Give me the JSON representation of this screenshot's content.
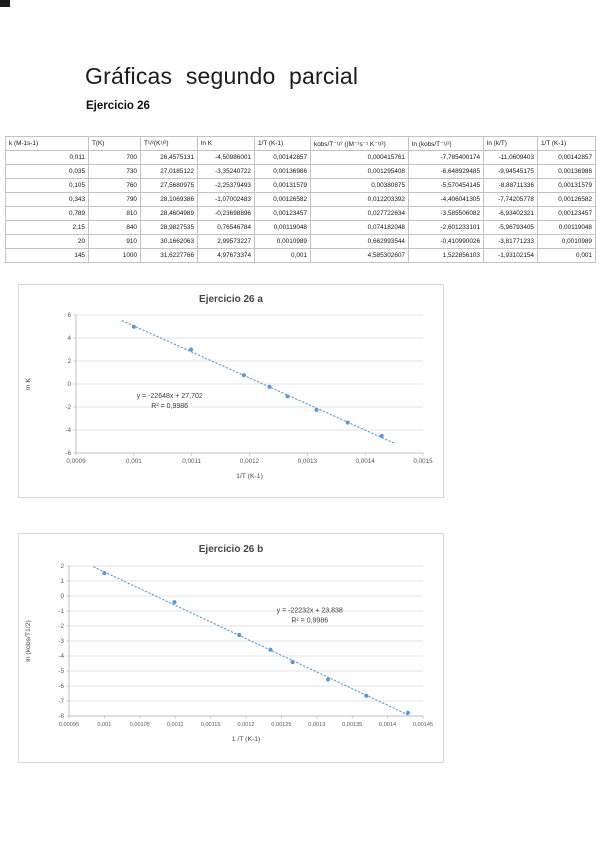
{
  "page": {
    "title": "Gráficas segundo  parcial",
    "subtitle": "Ejercicio 26"
  },
  "table": {
    "headers": [
      "k (M-1s-1)",
      "T(K)",
      "T¹/²(K¹/²)",
      "ln K",
      "1/T (K-1)",
      "kobs/T⁻¹/² ((M⁻¹s⁻¹ K⁻¹/²)",
      "ln (kobs/T⁻¹/²)",
      "ln (k/T)",
      "1/T (K-1)"
    ],
    "rows": [
      [
        "0,011",
        "700",
        "26,4575131",
        "-4,50986001",
        "0,00142857",
        "0,000415761",
        "-7,785400174",
        "-11,0609403",
        "0,00142857"
      ],
      [
        "0,035",
        "730",
        "27,0185122",
        "-3,35240722",
        "0,00136986",
        "0,001295408",
        "-6,648929485",
        "-9,94545175",
        "0,00136986"
      ],
      [
        "0,105",
        "760",
        "27,5680975",
        "-2,25379493",
        "0,00131579",
        "0,00380875",
        "-5,570454145",
        "-8,88711336",
        "0,00131579"
      ],
      [
        "0,343",
        "790",
        "28,1069386",
        "-1,07002483",
        "0,00126582",
        "0,012203392",
        "-4,406041305",
        "-7,74205778",
        "0,00126582"
      ],
      [
        "0,789",
        "810",
        "28,4604989",
        "-0,23698896",
        "0,00123457",
        "0,027722634",
        "-3,585506082",
        "-6,93402321",
        "0,00123457"
      ],
      [
        "2,15",
        "840",
        "28,9827535",
        "0,76546784",
        "0,00119048",
        "0,074182048",
        "-2,601233101",
        "-5,96793405",
        "0,00119048"
      ],
      [
        "20",
        "910",
        "30,1662063",
        "2,99573227",
        "0,0010989",
        "0,662993544",
        "-0,410990026",
        "-3,81771233",
        "0,0010989"
      ],
      [
        "145",
        "1000",
        "31,6227766",
        "4,97673374",
        "0,001",
        "4,585302607",
        "1,522856103",
        "-1,93102154",
        "0,001"
      ]
    ]
  },
  "chart_data": [
    {
      "type": "scatter",
      "title": "Ejercicio 26 a",
      "xlabel": "1/T (K-1)",
      "ylabel": "ln K",
      "xlim": [
        0.0009,
        0.0015
      ],
      "ylim": [
        -6,
        6
      ],
      "x_ticks": [
        0.0009,
        0.001,
        0.0011,
        0.0012,
        0.0013,
        0.0014,
        0.0015
      ],
      "x_tick_labels": [
        "0,0009",
        "0,001",
        "0,0011",
        "0,0012",
        "0,0013",
        "0,0014",
        "0,0015"
      ],
      "y_ticks": [
        -6,
        -4,
        -2,
        0,
        2,
        4,
        6
      ],
      "y_tick_labels": [
        "-6",
        "-4",
        "-2",
        "0",
        "2",
        "4",
        "6"
      ],
      "grid": "horizontal",
      "legend": "none",
      "points": [
        [
          0.001,
          4.97673374
        ],
        [
          0.0010989,
          2.99573227
        ],
        [
          0.00119048,
          0.76546784
        ],
        [
          0.00123457,
          -0.23698896
        ],
        [
          0.00126582,
          -1.07002483
        ],
        [
          0.00131579,
          -2.25379493
        ],
        [
          0.00136986,
          -3.35240722
        ],
        [
          0.00142857,
          -4.50986001
        ]
      ],
      "trendline": {
        "slope": -22648,
        "intercept": 27.702,
        "x_start": 0.00098,
        "x_end": 0.001452,
        "style": "dotted"
      },
      "annotation": {
        "lines": [
          "y = -22648x + 27,702",
          "R² = 0,9986"
        ],
        "pos": [
          0.27,
          0.6
        ]
      },
      "marker_color": "#5b9bd5",
      "trend_color": "#5b9bd5",
      "grid_color": "#dadada",
      "axis_color": "#bfbfbf",
      "text_color": "#595959"
    },
    {
      "type": "scatter",
      "title": "Ejercicio 26 b",
      "xlabel": "1 /T (K-1)",
      "ylabel": "ln (kobs/T1/2)",
      "xlim": [
        0.00095,
        0.00145
      ],
      "ylim": [
        -8,
        2
      ],
      "x_ticks": [
        0.00095,
        0.001,
        0.00105,
        0.0011,
        0.00115,
        0.0012,
        0.00125,
        0.0013,
        0.00135,
        0.0014,
        0.00145
      ],
      "x_tick_labels": [
        "0,00095",
        "0,001",
        "0,00105",
        "0,0011",
        "0,00115",
        "0,0012",
        "0,00125",
        "0,0013",
        "0,00135",
        "0,0014",
        "0,00145"
      ],
      "y_ticks": [
        -8,
        -7,
        -6,
        -5,
        -4,
        -3,
        -2,
        -1,
        0,
        1,
        2
      ],
      "y_tick_labels": [
        "-8",
        "-7",
        "-6",
        "-5",
        "-4",
        "-3",
        "-2",
        "-1",
        "0",
        "1",
        "2"
      ],
      "grid": "horizontal",
      "legend": "none",
      "points": [
        [
          0.001,
          1.522856103
        ],
        [
          0.0010989,
          -0.410990026
        ],
        [
          0.00119048,
          -2.601233101
        ],
        [
          0.00123457,
          -3.585506082
        ],
        [
          0.00126582,
          -4.406041305
        ],
        [
          0.00131579,
          -5.570454145
        ],
        [
          0.00136986,
          -6.648929485
        ],
        [
          0.00142857,
          -7.785400174
        ]
      ],
      "trendline": {
        "slope": -22232,
        "intercept": 23.838,
        "x_start": 0.000985,
        "x_end": 0.001431,
        "style": "dotted"
      },
      "annotation": {
        "lines": [
          "y = -22232x + 23,838",
          "R² = 0,9986"
        ],
        "pos": [
          0.68,
          0.31
        ]
      },
      "marker_color": "#5b9bd5",
      "trend_color": "#5b9bd5",
      "grid_color": "#dadada",
      "axis_color": "#bfbfbf",
      "text_color": "#595959"
    }
  ]
}
